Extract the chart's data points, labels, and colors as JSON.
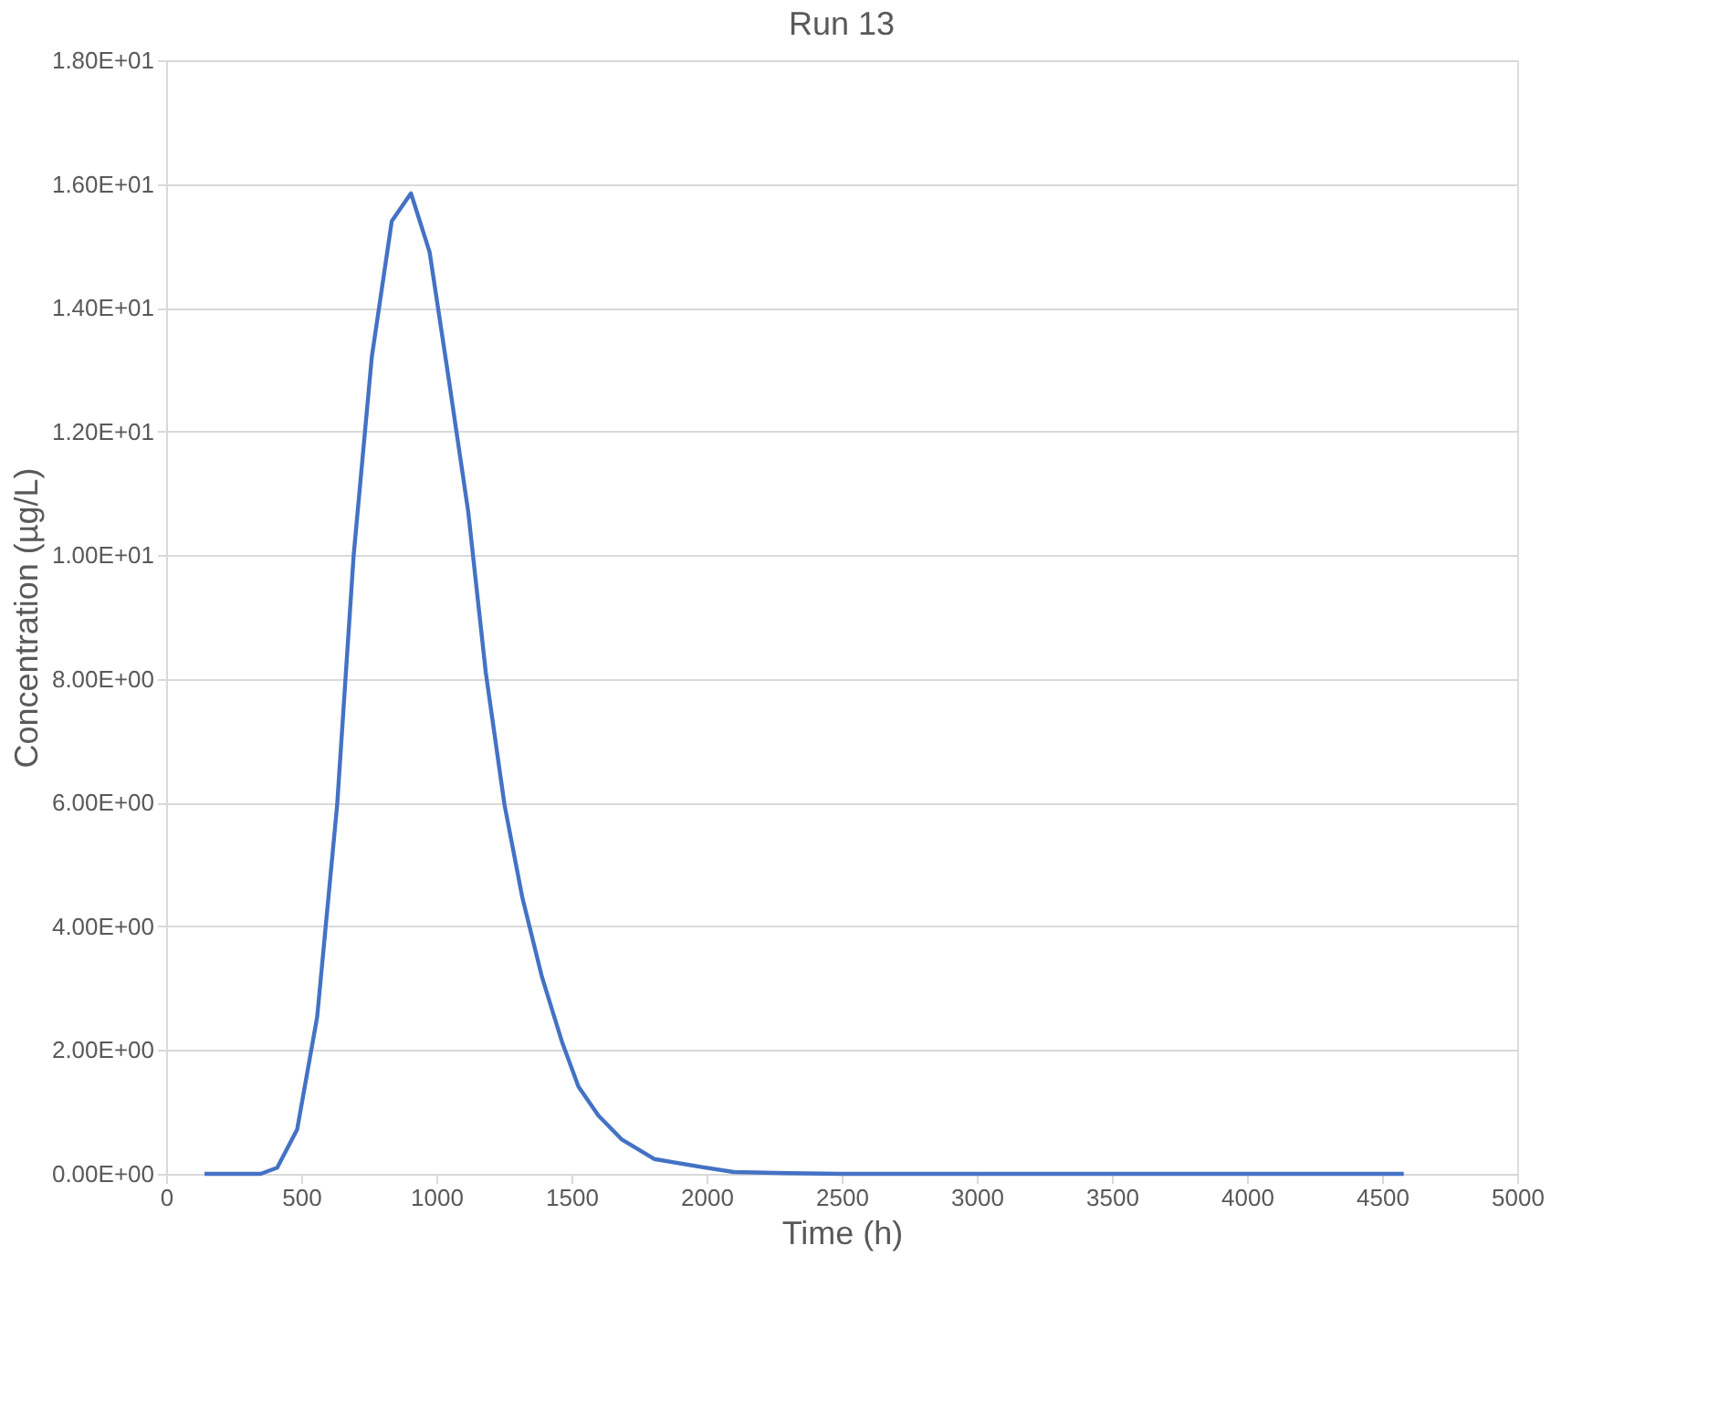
{
  "chart_data": {
    "type": "line",
    "title": "Run 13",
    "xlabel": "Time (h)",
    "ylabel": "Concentration (µg/L)",
    "x": [
      142,
      350,
      411,
      485,
      559,
      633,
      694,
      761,
      835,
      906,
      975,
      1044,
      1118,
      1183,
      1252,
      1318,
      1391,
      1466,
      1526,
      1600,
      1685,
      1806,
      1968,
      2100,
      2300,
      2500,
      4580
    ],
    "series": [
      {
        "color": "#4472c4",
        "values": [
          0,
          0,
          0.1,
          0.72,
          2.54,
          5.97,
          10.0,
          13.2,
          15.4,
          15.85,
          14.9,
          12.9,
          10.7,
          8.1,
          5.97,
          4.47,
          3.18,
          2.12,
          1.41,
          0.94,
          0.56,
          0.24,
          0.12,
          0.03,
          0.01,
          0,
          0
        ]
      }
    ],
    "xlim": [
      0,
      5000
    ],
    "xticks": [
      0,
      500,
      1000,
      1500,
      2000,
      2500,
      3000,
      3500,
      4000,
      4500,
      5000
    ],
    "ylim": [
      0,
      18
    ],
    "yticks": [
      {
        "value": 0,
        "label": "0.00E+00"
      },
      {
        "value": 2,
        "label": "2.00E+00"
      },
      {
        "value": 4,
        "label": "4.00E+00"
      },
      {
        "value": 6,
        "label": "6.00E+00"
      },
      {
        "value": 8,
        "label": "8.00E+00"
      },
      {
        "value": 10,
        "label": "1.00E+01"
      },
      {
        "value": 12,
        "label": "1.20E+01"
      },
      {
        "value": 14,
        "label": "1.40E+01"
      },
      {
        "value": 16,
        "label": "1.60E+01"
      },
      {
        "value": 18,
        "label": "1.80E+01"
      }
    ],
    "grid": "y"
  }
}
